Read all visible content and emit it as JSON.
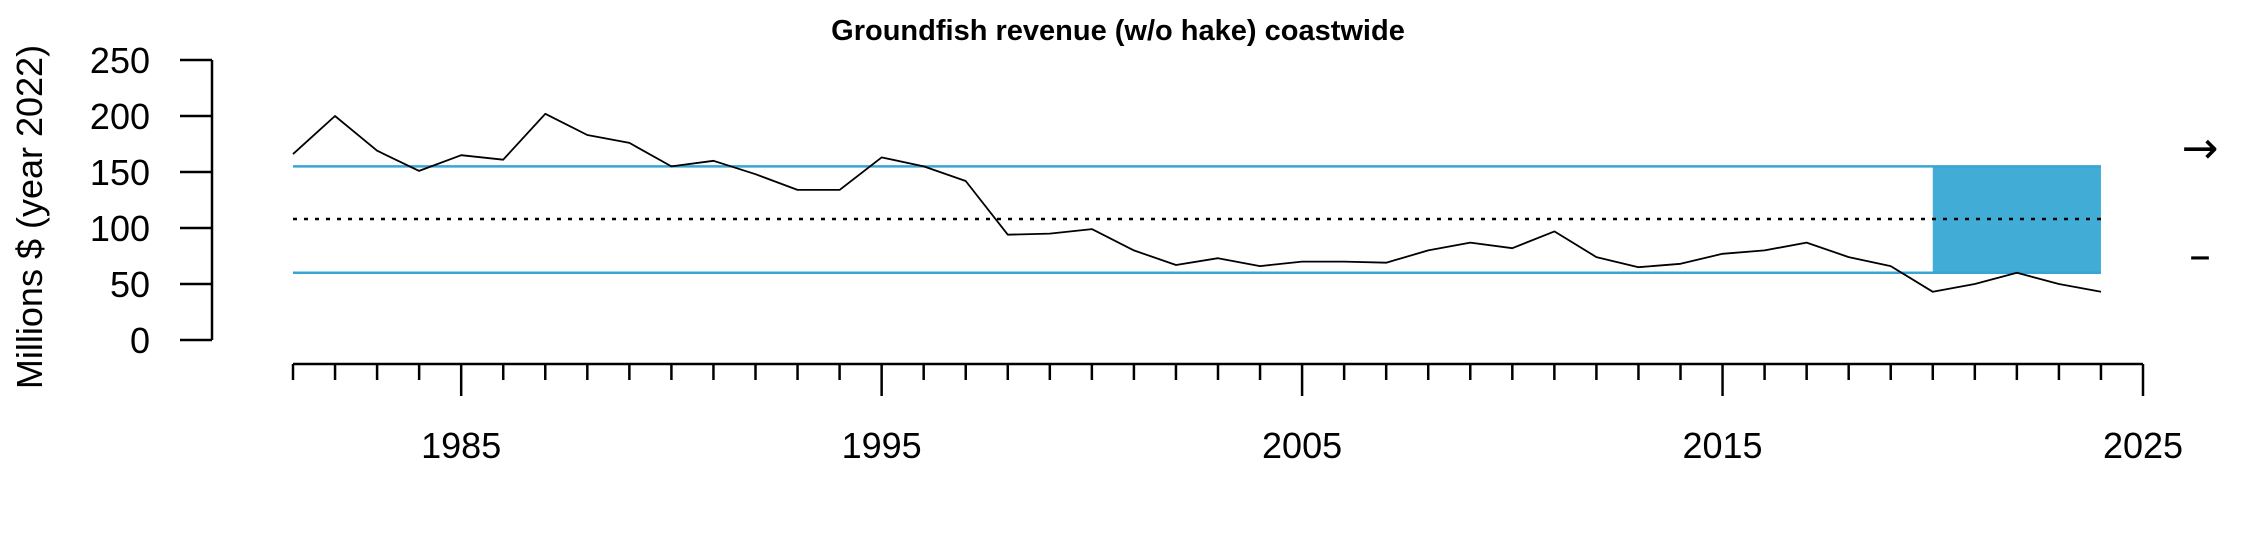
{
  "chart_data": {
    "type": "line",
    "title": "Groundfish revenue (w/o hake) coastwide",
    "ylabel": "Millions $ (year 2022)",
    "xlabel": "",
    "xlim": [
      1981,
      2025
    ],
    "ylim": [
      0,
      250
    ],
    "x_ticks": [
      1985,
      1995,
      2005,
      2015,
      2025
    ],
    "x_minor_tick_start": 1981,
    "y_ticks": [
      0,
      50,
      100,
      150,
      200,
      250
    ],
    "grid": false,
    "series": [
      {
        "color": "#000000",
        "x": [
          1981,
          1982,
          1983,
          1984,
          1985,
          1986,
          1987,
          1988,
          1989,
          1990,
          1991,
          1992,
          1993,
          1994,
          1995,
          1996,
          1997,
          1998,
          1999,
          2000,
          2001,
          2002,
          2003,
          2004,
          2005,
          2006,
          2007,
          2008,
          2009,
          2010,
          2011,
          2012,
          2013,
          2014,
          2015,
          2016,
          2017,
          2018,
          2019,
          2020,
          2021,
          2022,
          2023,
          2024
        ],
        "values": [
          166,
          200,
          169,
          151,
          165,
          161,
          202,
          183,
          176,
          155,
          160,
          148,
          134,
          134,
          163,
          155,
          142,
          94,
          95,
          99,
          80,
          67,
          73,
          66,
          70,
          70,
          69,
          80,
          87,
          82,
          97,
          74,
          65,
          68,
          77,
          80,
          87,
          74,
          66,
          43,
          50,
          60,
          50,
          43
        ]
      }
    ],
    "mean": 108,
    "sd_upper": 155,
    "sd_lower": 60,
    "recent_window": [
      2020,
      2024
    ],
    "colors": {
      "sd_lines": "#3aa4d4",
      "recent_box": "#41add6",
      "line": "#000000",
      "mean": "#000000"
    },
    "trend_indicators": {
      "trend": "→",
      "mean": "–"
    }
  }
}
